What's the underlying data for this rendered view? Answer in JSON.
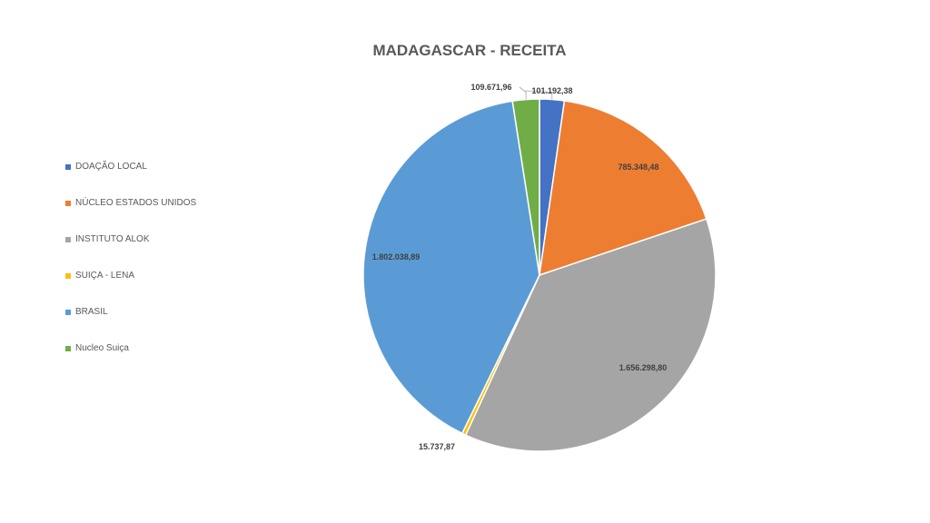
{
  "chart_data": {
    "type": "pie",
    "title": "MADAGASCAR - RECEITA",
    "legend_position": "left",
    "slices": [
      {
        "name": "DOAÇÃO LOCAL",
        "value": 101192.38,
        "label": "101.192,38",
        "color": "#4472C4"
      },
      {
        "name": "NÚCLEO ESTADOS UNIDOS",
        "value": 785348.48,
        "label": "785.348,48",
        "color": "#ED7D31"
      },
      {
        "name": "INSTITUTO ALOK",
        "value": 1656298.8,
        "label": "1.656.298,80",
        "color": "#A5A5A5"
      },
      {
        "name": "SUIÇA - LENA",
        "value": 15737.87,
        "label": "15.737,87",
        "color": "#FFC000"
      },
      {
        "name": "BRASIL",
        "value": 1802038.89,
        "label": "1.802.038,89",
        "color": "#5B9BD5"
      },
      {
        "name": "Nucleo Suiça",
        "value": 109671.96,
        "label": "109.671,96",
        "color": "#70AD47"
      }
    ]
  }
}
